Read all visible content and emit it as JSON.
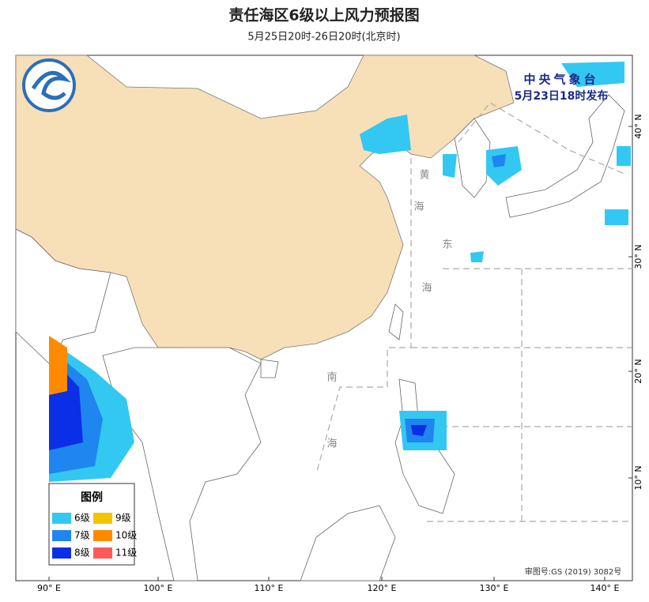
{
  "header": {
    "title": "责任海区6级以上风力预报图",
    "subtitle": "5月25日20时-26日20时(北京时)"
  },
  "issuer": {
    "name": "中央气象台",
    "time": "5月23日18时发布"
  },
  "legend": {
    "title": "图例",
    "items": [
      {
        "label": "6级",
        "color": "#33c8f2"
      },
      {
        "label": "7级",
        "color": "#1f86ef"
      },
      {
        "label": "8级",
        "color": "#0b2fe6"
      },
      {
        "label": "9级",
        "color": "#f5c400"
      },
      {
        "label": "10级",
        "color": "#ff8a00"
      },
      {
        "label": "11级",
        "color": "#ff5a5a"
      }
    ]
  },
  "sea_labels": [
    "黄",
    "海",
    "东",
    "海",
    "南",
    "海"
  ],
  "lon_labels": [
    "90° E",
    "100° E",
    "110° E",
    "120° E",
    "130° E",
    "140° E"
  ],
  "lat_labels": [
    "10° N",
    "20° N",
    "30° N",
    "40° N"
  ],
  "approval": "审图号:GS (2019) 3082号"
}
